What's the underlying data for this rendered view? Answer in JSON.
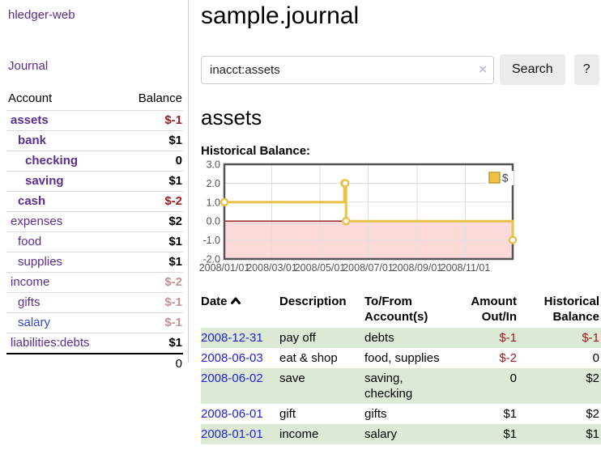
{
  "app": {
    "brand": "hledger-web"
  },
  "nav": {
    "journal": "Journal"
  },
  "sidebar": {
    "account_header": "Account",
    "balance_header": "Balance",
    "accounts": [
      {
        "name": "assets",
        "indent": 1,
        "bold": true,
        "color": "purple",
        "balance": "$-1",
        "negative": true
      },
      {
        "name": "bank",
        "indent": 2,
        "bold": true,
        "color": "purple",
        "balance": "$1",
        "negative": false
      },
      {
        "name": "checking",
        "indent": 3,
        "bold": true,
        "color": "purple",
        "balance": "0",
        "negative": false
      },
      {
        "name": "saving",
        "indent": 3,
        "bold": true,
        "color": "purple",
        "balance": "$1",
        "negative": false
      },
      {
        "name": "cash",
        "indent": 2,
        "bold": true,
        "color": "purple",
        "balance": "$-2",
        "negative": true
      },
      {
        "name": "expenses",
        "indent": 1,
        "bold": false,
        "color": "purple",
        "balance": "$2",
        "negative": false
      },
      {
        "name": "food",
        "indent": 2,
        "bold": false,
        "color": "purple",
        "balance": "$1",
        "negative": false
      },
      {
        "name": "supplies",
        "indent": 2,
        "bold": false,
        "color": "purple",
        "balance": "$1",
        "negative": false
      },
      {
        "name": "income",
        "indent": 1,
        "bold": false,
        "color": "purple",
        "balance": "$-2",
        "negative": true
      },
      {
        "name": "gifts",
        "indent": 2,
        "bold": false,
        "color": "purple",
        "balance": "$-1",
        "negative": true
      },
      {
        "name": "salary",
        "indent": 2,
        "bold": false,
        "color": "blue",
        "balance": "$-1",
        "negative": true
      },
      {
        "name": "liabilities:debts",
        "indent": 1,
        "bold": false,
        "color": "purple",
        "balance": "$1",
        "negative": false
      }
    ],
    "total": "0"
  },
  "main": {
    "title": "sample.journal",
    "account_heading": "assets",
    "chart_title": "Historical Balance:"
  },
  "search": {
    "value": "inacct:assets",
    "clear_icon": "×",
    "search_button": "Search",
    "help_button": "?"
  },
  "chart_data": {
    "type": "line",
    "interpolation": "step-after",
    "title": "Historical Balance",
    "legend": [
      {
        "label": "$",
        "color": "#edc240"
      }
    ],
    "legend_position": "top-right",
    "grid": true,
    "x_start": "2008-01-01",
    "x_end": "2008-12-31",
    "x_tick_labels": [
      "2008/01/01",
      "2008/03/01",
      "2008/05/01",
      "2008/07/01",
      "2008/09/01",
      "2008/11/01"
    ],
    "y_tick_labels": [
      "3.0",
      "2.0",
      "1.0",
      "0.0",
      "-1.0",
      "-2.0"
    ],
    "ylim": [
      -2,
      3
    ],
    "points": [
      {
        "date": "2008-01-01",
        "value": 1
      },
      {
        "date": "2008-06-01",
        "value": 2
      },
      {
        "date": "2008-06-02",
        "value": 2
      },
      {
        "date": "2008-06-03",
        "value": 0
      },
      {
        "date": "2008-12-31",
        "value": -1
      }
    ],
    "colors": {
      "line": "#e8c04a",
      "marker_fill": "#ffffff",
      "negative_region": "#fcdada",
      "zero_line": "#8c1717",
      "grid": "#e0e0e0",
      "frame": "#545454",
      "tick_text": "#545454",
      "legend_swatch_border": "#c19b2b"
    }
  },
  "register": {
    "headers": {
      "date": "Date",
      "description": "Description",
      "accounts": [
        "To/From",
        "Account(s)"
      ],
      "amount": [
        "Amount",
        "Out/In"
      ],
      "balance": [
        "Historical",
        "Balance"
      ]
    },
    "rows": [
      {
        "date": "2008-12-31",
        "description": "pay off",
        "accounts": "debts",
        "amount": "$-1",
        "amount_negative": true,
        "balance": "$-1",
        "balance_negative": true
      },
      {
        "date": "2008-06-03",
        "description": "eat & shop",
        "accounts": "food, supplies",
        "amount": "$-2",
        "amount_negative": true,
        "balance": "0",
        "balance_negative": false
      },
      {
        "date": "2008-06-02",
        "description": "save",
        "accounts": "saving, checking",
        "amount": "0",
        "amount_negative": false,
        "balance": "$2",
        "balance_negative": false
      },
      {
        "date": "2008-06-01",
        "description": "gift",
        "accounts": "gifts",
        "amount": "$1",
        "amount_negative": false,
        "balance": "$2",
        "balance_negative": false
      },
      {
        "date": "2008-01-01",
        "description": "income",
        "accounts": "salary",
        "amount": "$1",
        "amount_negative": false,
        "balance": "$1",
        "balance_negative": false
      }
    ]
  }
}
